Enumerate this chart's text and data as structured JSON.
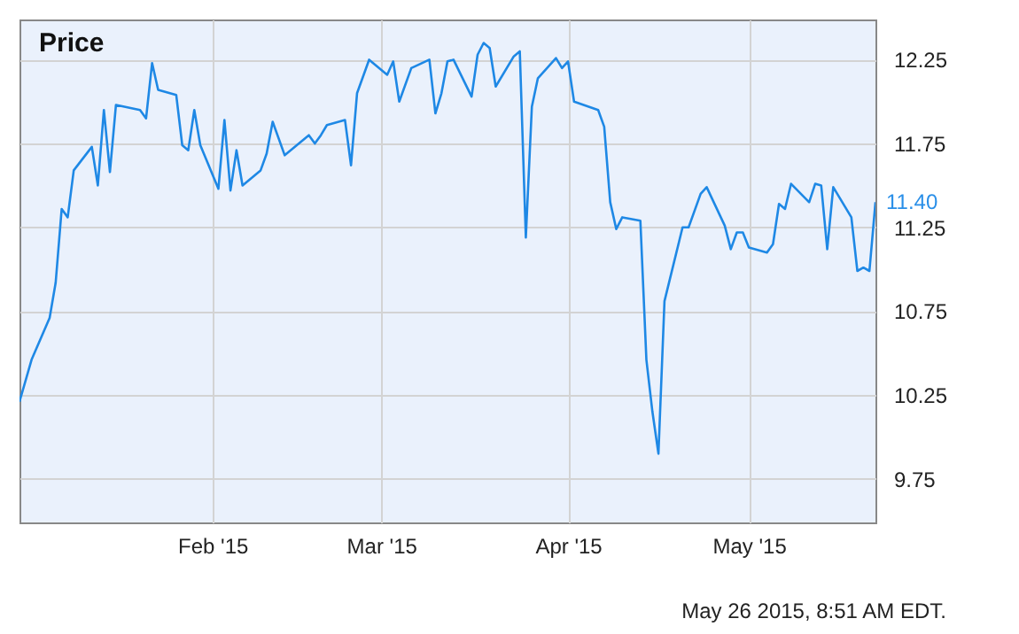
{
  "chart_data": {
    "type": "line",
    "title": "Price",
    "x": [
      "2014-12-31",
      "2015-01-02",
      "2015-01-05",
      "2015-01-06",
      "2015-01-07",
      "2015-01-08",
      "2015-01-09",
      "2015-01-12",
      "2015-01-13",
      "2015-01-14",
      "2015-01-15",
      "2015-01-16",
      "2015-01-20",
      "2015-01-21",
      "2015-01-22",
      "2015-01-23",
      "2015-01-26",
      "2015-01-27",
      "2015-01-28",
      "2015-01-29",
      "2015-01-30",
      "2015-02-02",
      "2015-02-03",
      "2015-02-04",
      "2015-02-05",
      "2015-02-06",
      "2015-02-09",
      "2015-02-10",
      "2015-02-11",
      "2015-02-13",
      "2015-02-17",
      "2015-02-18",
      "2015-02-19",
      "2015-02-20",
      "2015-02-23",
      "2015-02-24",
      "2015-02-25",
      "2015-02-27",
      "2015-03-02",
      "2015-03-03",
      "2015-03-04",
      "2015-03-06",
      "2015-03-09",
      "2015-03-10",
      "2015-03-11",
      "2015-03-12",
      "2015-03-13",
      "2015-03-16",
      "2015-03-17",
      "2015-03-18",
      "2015-03-19",
      "2015-03-20",
      "2015-03-23",
      "2015-03-24",
      "2015-03-25",
      "2015-03-26",
      "2015-03-27",
      "2015-03-30",
      "2015-03-31",
      "2015-04-01",
      "2015-04-02",
      "2015-04-06",
      "2015-04-07",
      "2015-04-08",
      "2015-04-09",
      "2015-04-10",
      "2015-04-13",
      "2015-04-14",
      "2015-04-15",
      "2015-04-16",
      "2015-04-17",
      "2015-04-20",
      "2015-04-21",
      "2015-04-23",
      "2015-04-24",
      "2015-04-27",
      "2015-04-28",
      "2015-04-29",
      "2015-04-30",
      "2015-05-01",
      "2015-05-04",
      "2015-05-05",
      "2015-05-06",
      "2015-05-07",
      "2015-05-08",
      "2015-05-11",
      "2015-05-12",
      "2015-05-13",
      "2015-05-14",
      "2015-05-15",
      "2015-05-18",
      "2015-05-19",
      "2015-05-20",
      "2015-05-21",
      "2015-05-22"
    ],
    "series": [
      {
        "color": "#1e88e5",
        "values": [
          10.21,
          10.46,
          10.71,
          10.92,
          11.36,
          11.31,
          11.59,
          11.73,
          11.5,
          11.95,
          11.58,
          11.98,
          11.95,
          11.9,
          12.23,
          12.07,
          12.04,
          11.74,
          11.71,
          11.95,
          11.74,
          11.48,
          11.89,
          11.47,
          11.71,
          11.5,
          11.59,
          11.69,
          11.88,
          11.68,
          11.8,
          11.75,
          11.8,
          11.86,
          11.89,
          11.62,
          12.05,
          12.25,
          12.16,
          12.24,
          12.0,
          12.2,
          12.25,
          11.93,
          12.05,
          12.24,
          12.25,
          12.03,
          12.28,
          12.35,
          12.32,
          12.09,
          12.27,
          12.3,
          11.19,
          11.97,
          12.14,
          12.26,
          12.2,
          12.24,
          12.0,
          11.95,
          11.85,
          11.4,
          11.24,
          11.31,
          11.29,
          10.46,
          10.15,
          9.9,
          10.81,
          11.25,
          11.25,
          11.45,
          11.49,
          11.26,
          11.12,
          11.22,
          11.22,
          11.13,
          11.1,
          11.15,
          11.39,
          11.36,
          11.51,
          11.4,
          11.51,
          11.5,
          11.12,
          11.49,
          11.31,
          10.99,
          11.01,
          10.99,
          11.4
        ]
      }
    ],
    "xlim": [
      "2014-12-31",
      "2015-05-22"
    ],
    "xticks": [
      {
        "value": "2015-02-01",
        "label": "Feb '15"
      },
      {
        "value": "2015-03-01",
        "label": "Mar '15"
      },
      {
        "value": "2015-04-01",
        "label": "Apr '15"
      },
      {
        "value": "2015-05-01",
        "label": "May '15"
      }
    ],
    "ylim": [
      9.49,
      12.49
    ],
    "yticks": [
      9.75,
      10.25,
      10.75,
      11.25,
      11.75,
      12.25
    ],
    "grid": true,
    "marker": "none",
    "line_style": "solid",
    "annotations": [
      {
        "text": "11.40",
        "x": "2015-05-22",
        "y": 11.4
      },
      "May 26 2015, 8:51 AM EDT."
    ]
  }
}
